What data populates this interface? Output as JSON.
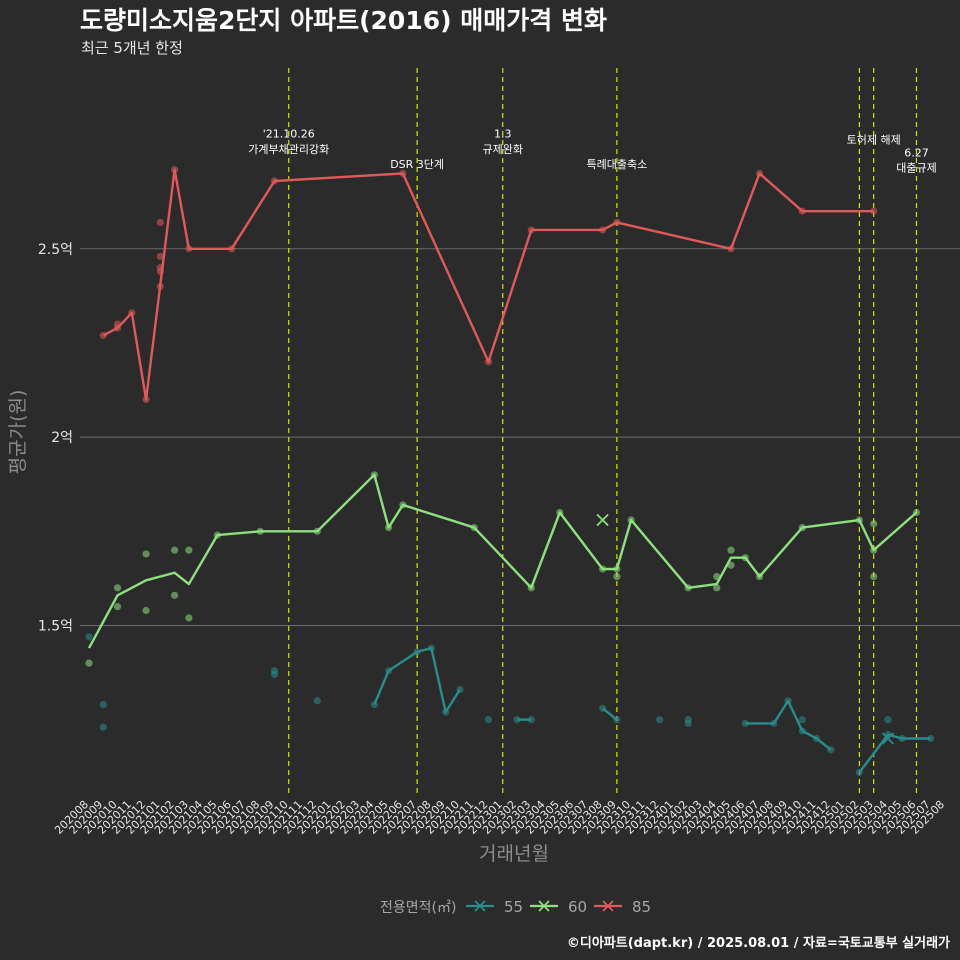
{
  "chart_data": {
    "type": "line",
    "title": "도량미소지움2단지 아파트(2016) 매매가격 변화",
    "subtitle": "최근 5개년 한정",
    "xlabel": "거래년월",
    "ylabel": "평균가(원)",
    "caption": "©디아파트(dapt.kr) / 2025.08.01 / 자료=국토교통부 실거래가",
    "legend_title": "전용면적(㎡)",
    "legend_position": "bottom",
    "grid": true,
    "ylim": [
      1.05,
      2.98
    ],
    "y_ticks": [
      {
        "value": 1.5,
        "label": "1.5억"
      },
      {
        "value": 2.0,
        "label": "2억"
      },
      {
        "value": 2.5,
        "label": "2.5억"
      }
    ],
    "x_categories": [
      "202008",
      "202009",
      "202010",
      "202011",
      "202012",
      "202101",
      "202102",
      "202103",
      "202104",
      "202105",
      "202106",
      "202107",
      "202108",
      "202109",
      "202110",
      "202111",
      "202112",
      "202201",
      "202202",
      "202203",
      "202204",
      "202205",
      "202206",
      "202207",
      "202208",
      "202209",
      "202210",
      "202211",
      "202212",
      "202301",
      "202302",
      "202303",
      "202304",
      "202305",
      "202306",
      "202307",
      "202308",
      "202309",
      "202310",
      "202311",
      "202312",
      "202401",
      "202402",
      "202403",
      "202404",
      "202405",
      "202406",
      "202407",
      "202408",
      "202409",
      "202410",
      "202411",
      "202412",
      "202501",
      "202502",
      "202503",
      "202504",
      "202505",
      "202506",
      "202507",
      "202508"
    ],
    "annotations": [
      {
        "x": 14,
        "label": [
          "'21.10.26",
          "가계부채관리강화"
        ],
        "label_y": [
          2.795,
          2.755
        ]
      },
      {
        "x": 23,
        "label": [
          "DSR 3단계"
        ],
        "label_y": [
          2.715
        ]
      },
      {
        "x": 29,
        "label": [
          "1.3",
          "규제완화"
        ],
        "label_y": [
          2.795,
          2.755
        ]
      },
      {
        "x": 37,
        "label": [
          "특례대출축소"
        ],
        "label_y": [
          2.715
        ]
      },
      {
        "x": 54,
        "label": [
          ""
        ],
        "label_y": []
      },
      {
        "x": 55,
        "label": [
          "토허제 해제"
        ],
        "label_y": [
          2.78
        ]
      },
      {
        "x": 58,
        "label": [
          "6.27",
          "대출규제"
        ],
        "label_y": [
          2.745,
          2.705
        ]
      }
    ],
    "series": [
      {
        "name": "55",
        "color": "#2a8c8c",
        "legend_color": "#2a8c8c",
        "line": [
          [
            20,
            1.29
          ],
          [
            21,
            1.38
          ],
          [
            23,
            1.43
          ],
          [
            24,
            1.44
          ],
          [
            25,
            1.27
          ],
          [
            26,
            1.33
          ],
          [
            null,
            null
          ],
          [
            30,
            1.25
          ],
          [
            31,
            1.25
          ],
          [
            null,
            null
          ],
          [
            36,
            1.28
          ],
          [
            37,
            1.25
          ],
          [
            null,
            null
          ],
          [
            46,
            1.24
          ],
          [
            48,
            1.24
          ],
          [
            49,
            1.3
          ],
          [
            50,
            1.22
          ],
          [
            51,
            1.2
          ],
          [
            52,
            1.17
          ],
          [
            null,
            null
          ],
          [
            54,
            1.11
          ],
          [
            56,
            1.21
          ],
          [
            57,
            1.2
          ],
          [
            59,
            1.2
          ]
        ],
        "points": [
          [
            0,
            1.47
          ],
          [
            1,
            1.29
          ],
          [
            1,
            1.23
          ],
          [
            13,
            1.38
          ],
          [
            13,
            1.37
          ],
          [
            16,
            1.3
          ],
          [
            20,
            1.29
          ],
          [
            21,
            1.38
          ],
          [
            23,
            1.43
          ],
          [
            24,
            1.44
          ],
          [
            25,
            1.27
          ],
          [
            26,
            1.33
          ],
          [
            28,
            1.25
          ],
          [
            30,
            1.25
          ],
          [
            31,
            1.25
          ],
          [
            36,
            1.28
          ],
          [
            37,
            1.25
          ],
          [
            40,
            1.25
          ],
          [
            42,
            1.25
          ],
          [
            42,
            1.24
          ],
          [
            46,
            1.24
          ],
          [
            48,
            1.24
          ],
          [
            49,
            1.3
          ],
          [
            50,
            1.22
          ],
          [
            50,
            1.25
          ],
          [
            51,
            1.2
          ],
          [
            52,
            1.17
          ],
          [
            54,
            1.11
          ],
          [
            56,
            1.21
          ],
          [
            56,
            1.25
          ],
          [
            57,
            1.2
          ],
          [
            59,
            1.2
          ]
        ],
        "cross": [
          [
            56,
            1.2
          ]
        ]
      },
      {
        "name": "60",
        "color": "#8ee07f",
        "legend_color": "#8ee07f",
        "line": [
          [
            0,
            1.44
          ],
          [
            2,
            1.58
          ],
          [
            4,
            1.62
          ],
          [
            6,
            1.64
          ],
          [
            7,
            1.61
          ],
          [
            9,
            1.74
          ],
          [
            12,
            1.75
          ],
          [
            16,
            1.75
          ],
          [
            20,
            1.9
          ],
          [
            21,
            1.76
          ],
          [
            22,
            1.82
          ],
          [
            27,
            1.76
          ],
          [
            31,
            1.6
          ],
          [
            33,
            1.8
          ],
          [
            36,
            1.65
          ],
          [
            37,
            1.65
          ],
          [
            38,
            1.78
          ],
          [
            42,
            1.6
          ],
          [
            44,
            1.61
          ],
          [
            45,
            1.68
          ],
          [
            46,
            1.68
          ],
          [
            47,
            1.63
          ],
          [
            50,
            1.76
          ],
          [
            54,
            1.78
          ],
          [
            55,
            1.7
          ],
          [
            58,
            1.8
          ]
        ],
        "points": [
          [
            0,
            1.4
          ],
          [
            2,
            1.55
          ],
          [
            2,
            1.6
          ],
          [
            4,
            1.54
          ],
          [
            4,
            1.69
          ],
          [
            6,
            1.58
          ],
          [
            6,
            1.7
          ],
          [
            7,
            1.52
          ],
          [
            7,
            1.7
          ],
          [
            9,
            1.74
          ],
          [
            12,
            1.75
          ],
          [
            16,
            1.75
          ],
          [
            20,
            1.9
          ],
          [
            21,
            1.76
          ],
          [
            22,
            1.82
          ],
          [
            27,
            1.76
          ],
          [
            31,
            1.6
          ],
          [
            33,
            1.8
          ],
          [
            36,
            1.65
          ],
          [
            37,
            1.63
          ],
          [
            37,
            1.65
          ],
          [
            38,
            1.78
          ],
          [
            42,
            1.6
          ],
          [
            44,
            1.6
          ],
          [
            44,
            1.63
          ],
          [
            45,
            1.66
          ],
          [
            45,
            1.7
          ],
          [
            46,
            1.68
          ],
          [
            47,
            1.63
          ],
          [
            50,
            1.76
          ],
          [
            54,
            1.78
          ],
          [
            55,
            1.7
          ],
          [
            55,
            1.77
          ],
          [
            55,
            1.63
          ],
          [
            58,
            1.8
          ]
        ],
        "cross": [
          [
            36,
            1.78
          ]
        ]
      },
      {
        "name": "85",
        "color": "#e05a5a",
        "legend_color": "#e05a5a",
        "line": [
          [
            1,
            2.27
          ],
          [
            2,
            2.29
          ],
          [
            3,
            2.33
          ],
          [
            4,
            2.1
          ],
          [
            6,
            2.71
          ],
          [
            7,
            2.5
          ],
          [
            10,
            2.5
          ],
          [
            13,
            2.68
          ],
          [
            22,
            2.7
          ],
          [
            28,
            2.2
          ],
          [
            31,
            2.55
          ],
          [
            36,
            2.55
          ],
          [
            37,
            2.57
          ],
          [
            45,
            2.5
          ],
          [
            47,
            2.7
          ],
          [
            50,
            2.6
          ],
          [
            55,
            2.6
          ]
        ],
        "points": [
          [
            1,
            2.27
          ],
          [
            2,
            2.29
          ],
          [
            2,
            2.3
          ],
          [
            3,
            2.33
          ],
          [
            4,
            2.1
          ],
          [
            5,
            2.57
          ],
          [
            5,
            2.48
          ],
          [
            5,
            2.45
          ],
          [
            5,
            2.44
          ],
          [
            5,
            2.4
          ],
          [
            6,
            2.71
          ],
          [
            7,
            2.5
          ],
          [
            10,
            2.5
          ],
          [
            13,
            2.68
          ],
          [
            22,
            2.7
          ],
          [
            28,
            2.2
          ],
          [
            31,
            2.55
          ],
          [
            36,
            2.55
          ],
          [
            37,
            2.57
          ],
          [
            45,
            2.5
          ],
          [
            47,
            2.7
          ],
          [
            50,
            2.6
          ],
          [
            55,
            2.6
          ]
        ],
        "cross": []
      }
    ]
  }
}
